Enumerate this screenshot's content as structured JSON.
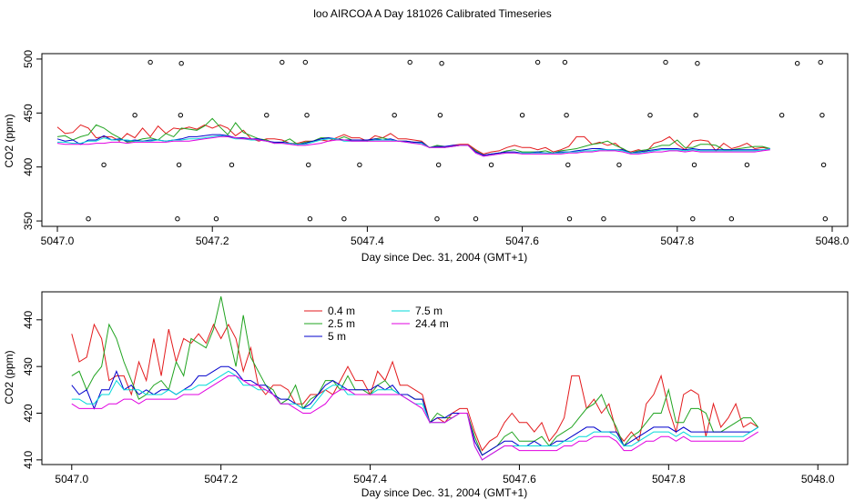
{
  "page": {
    "title": "loo AIRCOA A  Day 181026  Calibrated Timeseries"
  },
  "chart_data": [
    {
      "type": "scatter",
      "xlabel": "Day since Dec. 31, 2004 (GMT+1)",
      "ylabel": "CO2 (ppm)",
      "xlim": [
        5046.98,
        5048.02
      ],
      "ylim": [
        345,
        505
      ],
      "xticks": [
        5047.0,
        5047.2,
        5047.4,
        5047.6,
        5047.8,
        5048.0
      ],
      "xtick_labels": [
        "5047.0",
        "5047.2",
        "5047.4",
        "5047.6",
        "5047.8",
        "5048.0"
      ],
      "yticks": [
        350,
        400,
        450,
        500
      ],
      "ytick_labels": [
        "350",
        "400",
        "450",
        "500"
      ],
      "outlier_points": [
        {
          "x": 5047.04,
          "y": 352
        },
        {
          "x": 5047.06,
          "y": 402
        },
        {
          "x": 5047.1,
          "y": 448
        },
        {
          "x": 5047.12,
          "y": 497
        },
        {
          "x": 5047.155,
          "y": 352
        },
        {
          "x": 5047.157,
          "y": 402
        },
        {
          "x": 5047.159,
          "y": 448
        },
        {
          "x": 5047.16,
          "y": 496
        },
        {
          "x": 5047.205,
          "y": 352
        },
        {
          "x": 5047.225,
          "y": 402
        },
        {
          "x": 5047.27,
          "y": 448
        },
        {
          "x": 5047.29,
          "y": 497
        },
        {
          "x": 5047.32,
          "y": 497
        },
        {
          "x": 5047.322,
          "y": 448
        },
        {
          "x": 5047.324,
          "y": 402
        },
        {
          "x": 5047.326,
          "y": 352
        },
        {
          "x": 5047.37,
          "y": 352
        },
        {
          "x": 5047.39,
          "y": 402
        },
        {
          "x": 5047.435,
          "y": 448
        },
        {
          "x": 5047.455,
          "y": 497
        },
        {
          "x": 5047.49,
          "y": 352
        },
        {
          "x": 5047.492,
          "y": 402
        },
        {
          "x": 5047.494,
          "y": 448
        },
        {
          "x": 5047.496,
          "y": 496
        },
        {
          "x": 5047.54,
          "y": 352
        },
        {
          "x": 5047.56,
          "y": 402
        },
        {
          "x": 5047.6,
          "y": 448
        },
        {
          "x": 5047.62,
          "y": 497
        },
        {
          "x": 5047.655,
          "y": 497
        },
        {
          "x": 5047.657,
          "y": 448
        },
        {
          "x": 5047.659,
          "y": 402
        },
        {
          "x": 5047.661,
          "y": 352
        },
        {
          "x": 5047.705,
          "y": 352
        },
        {
          "x": 5047.725,
          "y": 402
        },
        {
          "x": 5047.765,
          "y": 448
        },
        {
          "x": 5047.785,
          "y": 497
        },
        {
          "x": 5047.82,
          "y": 352
        },
        {
          "x": 5047.822,
          "y": 402
        },
        {
          "x": 5047.824,
          "y": 448
        },
        {
          "x": 5047.826,
          "y": 496
        },
        {
          "x": 5047.87,
          "y": 352
        },
        {
          "x": 5047.89,
          "y": 402
        },
        {
          "x": 5047.935,
          "y": 448
        },
        {
          "x": 5047.955,
          "y": 496
        },
        {
          "x": 5047.985,
          "y": 497
        },
        {
          "x": 5047.987,
          "y": 448
        },
        {
          "x": 5047.989,
          "y": 402
        },
        {
          "x": 5047.991,
          "y": 352
        }
      ],
      "series_ref": "shared"
    },
    {
      "type": "line",
      "xlabel": "Day since Dec. 31, 2004 (GMT+1)",
      "ylabel": "CO2 (ppm)",
      "xlim": [
        5046.96,
        5048.04
      ],
      "ylim": [
        409,
        446
      ],
      "xticks": [
        5047.0,
        5047.2,
        5047.4,
        5047.6,
        5047.8,
        5048.0
      ],
      "xtick_labels": [
        "5047.0",
        "5047.2",
        "5047.4",
        "5047.6",
        "5047.8",
        "5048.0"
      ],
      "yticks": [
        410,
        420,
        430,
        440
      ],
      "ytick_labels": [
        "410",
        "420",
        "430",
        "440"
      ],
      "legend": {
        "placement": "top-center",
        "entries": [
          {
            "label": "0.4 m",
            "color": "#e31a1c"
          },
          {
            "label": "2.5 m",
            "color": "#1fa31f"
          },
          {
            "label": "5 m",
            "color": "#0000cc"
          },
          {
            "label": "7.5 m",
            "color": "#00d8d8"
          },
          {
            "label": "24.4 m",
            "color": "#e000e0"
          }
        ]
      }
    }
  ],
  "series": [
    {
      "name": "0.4 m",
      "color": "#e31a1c",
      "x0": 5047.0,
      "dx": 0.01,
      "values": [
        437,
        431,
        432,
        439,
        436,
        427,
        428,
        428,
        424,
        431,
        427,
        436,
        428,
        438,
        431,
        436,
        435,
        437,
        435,
        439,
        436,
        439,
        436,
        429,
        434,
        426,
        424,
        426,
        426,
        425,
        422,
        422,
        424,
        424,
        425,
        424,
        427,
        430,
        427,
        427,
        424,
        429,
        427,
        431,
        426,
        426,
        425,
        424,
        418,
        419,
        418,
        420,
        421,
        421,
        416,
        412,
        414,
        415,
        418,
        420,
        418,
        418,
        416,
        418,
        414,
        416,
        419,
        428,
        428,
        421,
        423,
        420,
        422,
        416,
        414,
        416,
        414,
        422,
        424,
        428,
        421,
        416,
        424,
        425,
        424,
        415,
        422,
        417,
        419,
        422,
        417,
        418,
        417
      ]
    },
    {
      "name": "2.5 m",
      "color": "#1fa31f",
      "x0": 5047.0,
      "dx": 0.01,
      "values": [
        428,
        429,
        425,
        428,
        430,
        439,
        436,
        431,
        427,
        423,
        424,
        426,
        427,
        425,
        431,
        428,
        436,
        435,
        434,
        438,
        445,
        437,
        430,
        441,
        432,
        429,
        426,
        425,
        422,
        423,
        426,
        421,
        423,
        424,
        427,
        427,
        425,
        428,
        425,
        425,
        424,
        426,
        427,
        425,
        424,
        424,
        423,
        423,
        418,
        420,
        419,
        419,
        420,
        420,
        415,
        411,
        412,
        413,
        415,
        416,
        414,
        414,
        414,
        415,
        413,
        415,
        416,
        417,
        419,
        421,
        422,
        424,
        420,
        417,
        413,
        415,
        416,
        418,
        420,
        420,
        425,
        418,
        418,
        421,
        421,
        420,
        416,
        416,
        417,
        418,
        419,
        419,
        417
      ]
    },
    {
      "name": "5 m",
      "color": "#0000cc",
      "x0": 5047.0,
      "dx": 0.01,
      "values": [
        426,
        424,
        425,
        421,
        425,
        425,
        429,
        425,
        426,
        424,
        425,
        424,
        425,
        425,
        424,
        425,
        426,
        428,
        428,
        429,
        430,
        430,
        429,
        427,
        427,
        426,
        426,
        424,
        423,
        423,
        422,
        421,
        422,
        424,
        426,
        427,
        426,
        425,
        425,
        425,
        425,
        426,
        425,
        426,
        424,
        424,
        423,
        423,
        418,
        419,
        419,
        420,
        420,
        420,
        414,
        411,
        412,
        413,
        414,
        414,
        413,
        413,
        414,
        413,
        413,
        414,
        414,
        415,
        416,
        417,
        417,
        416,
        416,
        416,
        413,
        414,
        415,
        416,
        417,
        417,
        417,
        416,
        417,
        416,
        416,
        416,
        416,
        416,
        416,
        416,
        416,
        416,
        417
      ]
    },
    {
      "name": "7.5 m",
      "color": "#00d8d8",
      "x0": 5047.0,
      "dx": 0.01,
      "values": [
        423,
        423,
        422,
        422,
        424,
        424,
        427,
        425,
        425,
        425,
        424,
        424,
        424,
        425,
        424,
        425,
        425,
        426,
        426,
        427,
        428,
        429,
        428,
        426,
        426,
        425,
        425,
        424,
        422,
        422,
        422,
        421,
        421,
        423,
        425,
        426,
        426,
        424,
        424,
        424,
        424,
        425,
        425,
        425,
        424,
        423,
        422,
        422,
        418,
        418,
        418,
        419,
        420,
        420,
        413,
        410,
        411,
        412,
        413,
        413,
        413,
        413,
        413,
        413,
        413,
        413,
        414,
        414,
        415,
        415,
        416,
        416,
        416,
        415,
        413,
        413,
        414,
        415,
        416,
        416,
        416,
        415,
        416,
        415,
        415,
        415,
        415,
        415,
        415,
        415,
        415,
        416,
        417
      ]
    },
    {
      "name": "24.4 m",
      "color": "#e000e0",
      "x0": 5047.0,
      "dx": 0.01,
      "values": [
        422,
        421,
        421,
        421,
        421,
        422,
        422,
        423,
        423,
        422,
        423,
        423,
        423,
        423,
        423,
        424,
        424,
        424,
        425,
        426,
        427,
        428,
        428,
        427,
        426,
        426,
        425,
        424,
        422,
        422,
        421,
        420,
        420,
        421,
        422,
        424,
        425,
        425,
        424,
        424,
        424,
        424,
        424,
        424,
        424,
        423,
        422,
        421,
        418,
        418,
        418,
        419,
        420,
        420,
        413,
        410,
        411,
        412,
        413,
        413,
        412,
        412,
        412,
        412,
        412,
        412,
        413,
        413,
        414,
        414,
        415,
        415,
        415,
        414,
        412,
        412,
        413,
        414,
        414,
        415,
        415,
        414,
        415,
        414,
        414,
        414,
        414,
        414,
        414,
        414,
        414,
        415,
        416
      ]
    }
  ]
}
